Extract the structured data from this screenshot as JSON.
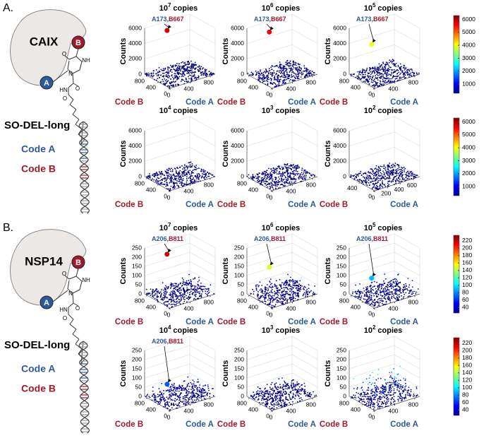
{
  "sections": [
    {
      "label": "A.",
      "protein": "CAIX",
      "site_a": "A",
      "site_b": "B",
      "atoms": [
        "O",
        "NH",
        "N",
        "O",
        "HN",
        "O"
      ],
      "linker": "SO-DEL-long",
      "code_a": "Code A",
      "code_b": "Code B",
      "colorbars": [
        {
          "lim": [
            300,
            6300
          ],
          "ticks": [
            1000,
            2000,
            3000,
            4000,
            5000,
            6000
          ]
        },
        {
          "lim": [
            300,
            6300
          ],
          "ticks": [
            1000,
            2000,
            3000,
            4000,
            5000,
            6000
          ]
        }
      ],
      "panels": [
        {
          "title": {
            "base": "10",
            "exponent": "7",
            "unit": "copies"
          },
          "zlabel": "Counts",
          "xlabel": "Code B",
          "ylabel": "Code A",
          "zlim": [
            0,
            6000
          ],
          "zticks": [
            0,
            2000,
            4000,
            6000
          ],
          "blim": [
            0,
            900
          ],
          "bticks": [
            0,
            400,
            800
          ],
          "alim": [
            0,
            900
          ],
          "aticks": [
            0,
            400,
            800
          ],
          "hit": {
            "a": "A173,",
            "b": "B667",
            "counts": 5800
          }
        },
        {
          "title": {
            "base": "10",
            "exponent": "6",
            "unit": "copies"
          },
          "zlabel": "Counts",
          "xlabel": "Code B",
          "ylabel": "Code A",
          "zlim": [
            0,
            6000
          ],
          "zticks": [
            0,
            2000,
            4000,
            6000
          ],
          "blim": [
            0,
            900
          ],
          "bticks": [
            0,
            400,
            800
          ],
          "alim": [
            0,
            900
          ],
          "aticks": [
            0,
            400,
            800
          ],
          "hit": {
            "a": "A173,",
            "b": "B667",
            "counts": 5600
          }
        },
        {
          "title": {
            "base": "10",
            "exponent": "5",
            "unit": "copies"
          },
          "zlabel": "Counts",
          "xlabel": "Code B",
          "ylabel": "Code A",
          "zlim": [
            0,
            6000
          ],
          "zticks": [
            0,
            2000,
            4000,
            6000
          ],
          "blim": [
            0,
            900
          ],
          "bticks": [
            0,
            400,
            800
          ],
          "alim": [
            0,
            900
          ],
          "aticks": [
            0,
            400,
            800
          ],
          "hit": {
            "a": "A173,",
            "b": "B667",
            "counts": 4000
          }
        },
        {
          "title": {
            "base": "10",
            "exponent": "4",
            "unit": "copies"
          },
          "zlabel": "Counts",
          "xlabel": "Code B",
          "ylabel": "Code A",
          "zlim": [
            0,
            6000
          ],
          "zticks": [
            0,
            2000,
            4000,
            6000
          ],
          "blim": [
            0,
            900
          ],
          "bticks": [
            0,
            400,
            800
          ],
          "alim": [
            0,
            900
          ],
          "aticks": [
            0,
            400,
            800
          ]
        },
        {
          "title": {
            "base": "10",
            "exponent": "3",
            "unit": "copies"
          },
          "zlabel": "Counts",
          "xlabel": "Code B",
          "ylabel": "Code A",
          "zlim": [
            0,
            6000
          ],
          "zticks": [
            0,
            2000,
            4000,
            6000
          ],
          "blim": [
            0,
            900
          ],
          "bticks": [
            0,
            400,
            800
          ],
          "alim": [
            0,
            900
          ],
          "aticks": [
            0,
            400,
            800
          ]
        },
        {
          "title": {
            "base": "10",
            "exponent": "2",
            "unit": "copies"
          },
          "zlabel": "Counts",
          "xlabel": "Code B",
          "ylabel": "Code A",
          "zlim": [
            0,
            6000
          ],
          "zticks": [
            0,
            2000,
            4000,
            6000
          ],
          "blim": [
            0,
            700
          ],
          "bticks": [
            0,
            400
          ],
          "alim": [
            0,
            700
          ],
          "aticks": [
            0,
            200,
            400,
            600
          ]
        }
      ]
    },
    {
      "label": "B.",
      "protein": "NSP14",
      "site_a": "A",
      "site_b": "B",
      "atoms": [
        "O",
        "NH",
        "N",
        "O",
        "HN",
        "O"
      ],
      "linker": "SO-DEL-long",
      "code_a": "Code A",
      "code_b": "Code B",
      "colorbars": [
        {
          "lim": [
            25,
            235
          ],
          "ticks": [
            40,
            60,
            80,
            100,
            120,
            140,
            160,
            180,
            200,
            220
          ]
        },
        {
          "lim": [
            25,
            235
          ],
          "ticks": [
            40,
            60,
            80,
            100,
            120,
            140,
            160,
            180,
            200,
            220
          ]
        }
      ],
      "panels": [
        {
          "title": {
            "base": "10",
            "exponent": "7",
            "unit": "copies"
          },
          "zlabel": "Counts",
          "xlabel": "Code B",
          "ylabel": "Code A",
          "zlim": [
            0,
            250
          ],
          "zticks": [
            0,
            50,
            100,
            150,
            200,
            250
          ],
          "blim": [
            0,
            900
          ],
          "bticks": [
            0,
            400,
            800
          ],
          "alim": [
            0,
            900
          ],
          "aticks": [
            0,
            400,
            800
          ],
          "hit": {
            "a": "A206,",
            "b": "B811",
            "counts": 220
          }
        },
        {
          "title": {
            "base": "10",
            "exponent": "6",
            "unit": "copies"
          },
          "zlabel": "Counts",
          "xlabel": "Code B",
          "ylabel": "Code A",
          "zlim": [
            0,
            250
          ],
          "zticks": [
            0,
            50,
            100,
            150,
            200,
            250
          ],
          "blim": [
            0,
            900
          ],
          "bticks": [
            0,
            400,
            800
          ],
          "alim": [
            0,
            900
          ],
          "aticks": [
            0,
            400,
            800
          ],
          "hit": {
            "a": "A206,",
            "b": "B811",
            "counts": 150
          }
        },
        {
          "title": {
            "base": "10",
            "exponent": "5",
            "unit": "copies"
          },
          "zlabel": "Counts",
          "xlabel": "Code B",
          "ylabel": "Code A",
          "zlim": [
            0,
            250
          ],
          "zticks": [
            0,
            50,
            100,
            150,
            200,
            250
          ],
          "blim": [
            0,
            900
          ],
          "bticks": [
            0,
            400,
            800
          ],
          "alim": [
            0,
            900
          ],
          "aticks": [
            0,
            400,
            800
          ],
          "hit": {
            "a": "A206,",
            "b": "B811",
            "counts": 90
          }
        },
        {
          "title": {
            "base": "10",
            "exponent": "4",
            "unit": "copies"
          },
          "zlabel": "Counts",
          "xlabel": "Code B",
          "ylabel": "Code A",
          "zlim": [
            0,
            250
          ],
          "zticks": [
            0,
            50,
            100,
            150,
            200,
            250
          ],
          "blim": [
            0,
            900
          ],
          "bticks": [
            0,
            400,
            800
          ],
          "alim": [
            0,
            900
          ],
          "aticks": [
            0,
            400,
            800
          ],
          "hit": {
            "a": "A206,",
            "b": "B811",
            "counts": 70
          }
        },
        {
          "title": {
            "base": "10",
            "exponent": "3",
            "unit": "copies"
          },
          "zlabel": "Counts",
          "xlabel": "Code B",
          "ylabel": "Code A",
          "zlim": [
            0,
            250
          ],
          "zticks": [
            0,
            50,
            100,
            150,
            200,
            250
          ],
          "blim": [
            0,
            900
          ],
          "bticks": [
            0,
            400,
            800
          ],
          "alim": [
            0,
            900
          ],
          "aticks": [
            0,
            400,
            800
          ]
        },
        {
          "title": {
            "base": "10",
            "exponent": "2",
            "unit": "copies"
          },
          "zlabel": "Counts",
          "xlabel": "Code B",
          "ylabel": "Code A",
          "zlim": [
            0,
            250
          ],
          "zticks": [
            0,
            50,
            100,
            150,
            200,
            250
          ],
          "blim": [
            0,
            900
          ],
          "bticks": [
            0,
            400,
            800
          ],
          "alim": [
            0,
            900
          ],
          "aticks": [
            0,
            400,
            800
          ]
        }
      ]
    }
  ]
}
